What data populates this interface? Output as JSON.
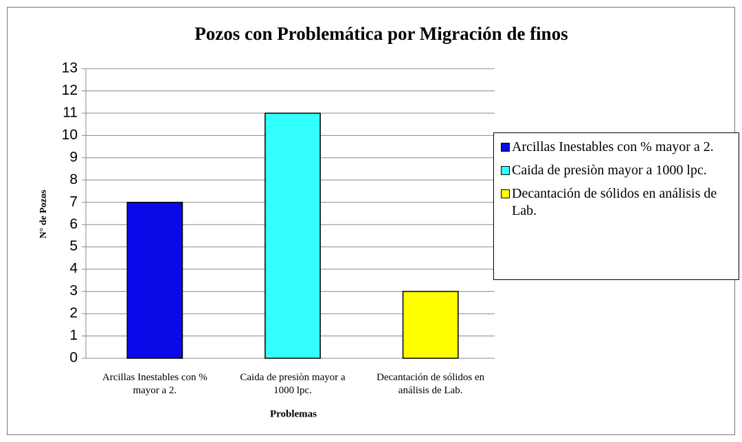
{
  "chart_data": {
    "type": "bar",
    "title": "Pozos con Problemática por Migración de finos",
    "x_label": "Problemas",
    "y_label": "N° de Pozos",
    "categories": [
      "Arcillas Inestables con % mayor a 2.",
      "Caida de presiòn mayor a 1000 lpc.",
      "Decantación de sólidos en análisis de Lab."
    ],
    "values": [
      7,
      11,
      3
    ],
    "colors": [
      "#0a0ae8",
      "#33ffff",
      "#ffff00"
    ],
    "ylim": [
      0,
      13
    ],
    "yticks": [
      0,
      1,
      2,
      3,
      4,
      5,
      6,
      7,
      8,
      9,
      10,
      11,
      12,
      13
    ],
    "grid": true,
    "legend": "right"
  }
}
